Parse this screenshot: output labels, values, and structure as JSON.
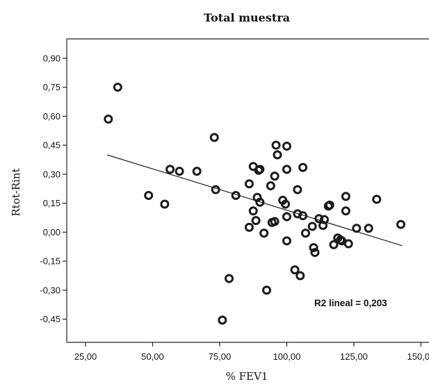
{
  "chart_data": {
    "type": "scatter",
    "title": "Total muestra",
    "xlabel": "% FEV1",
    "ylabel": "Rtot-Rint",
    "xlim": [
      18,
      153
    ],
    "ylim": [
      -0.57,
      1.0
    ],
    "xticks": [
      25,
      50,
      75,
      100,
      125,
      150
    ],
    "xtick_labels": [
      "25,00",
      "50,00",
      "75,00",
      "100,00",
      "125,00",
      "150,00"
    ],
    "yticks": [
      0.9,
      0.75,
      0.6,
      0.45,
      0.3,
      0.15,
      0.0,
      -0.15,
      -0.3,
      -0.45
    ],
    "ytick_labels": [
      "0,90",
      "0,75",
      "0,60",
      "0,45",
      "0,30",
      "0,15",
      "0,00",
      "-0,15",
      "-0,30",
      "-0,45"
    ],
    "grid": false,
    "annotation": "R2 lineal = 0,203",
    "fit_line": {
      "x": [
        33,
        143
      ],
      "y": [
        0.4,
        -0.07
      ]
    },
    "points": [
      {
        "x": 33.5,
        "y": 0.585
      },
      {
        "x": 37.0,
        "y": 0.75
      },
      {
        "x": 48.5,
        "y": 0.19
      },
      {
        "x": 54.5,
        "y": 0.145
      },
      {
        "x": 56.5,
        "y": 0.325
      },
      {
        "x": 60.0,
        "y": 0.315
      },
      {
        "x": 66.5,
        "y": 0.315
      },
      {
        "x": 73.0,
        "y": 0.49
      },
      {
        "x": 73.5,
        "y": 0.22
      },
      {
        "x": 76.0,
        "y": -0.455
      },
      {
        "x": 78.5,
        "y": -0.24
      },
      {
        "x": 81.0,
        "y": 0.19
      },
      {
        "x": 86.0,
        "y": 0.025
      },
      {
        "x": 86.0,
        "y": 0.25
      },
      {
        "x": 87.5,
        "y": 0.34
      },
      {
        "x": 87.5,
        "y": 0.11
      },
      {
        "x": 88.5,
        "y": 0.06
      },
      {
        "x": 89.0,
        "y": 0.18
      },
      {
        "x": 89.5,
        "y": 0.32
      },
      {
        "x": 90.0,
        "y": 0.325
      },
      {
        "x": 90.0,
        "y": 0.155
      },
      {
        "x": 91.5,
        "y": -0.005
      },
      {
        "x": 92.5,
        "y": -0.3
      },
      {
        "x": 94.0,
        "y": 0.24
      },
      {
        "x": 94.5,
        "y": 0.05
      },
      {
        "x": 95.5,
        "y": 0.055
      },
      {
        "x": 95.5,
        "y": 0.29
      },
      {
        "x": 96.0,
        "y": 0.45
      },
      {
        "x": 96.5,
        "y": 0.4
      },
      {
        "x": 98.5,
        "y": 0.165
      },
      {
        "x": 99.5,
        "y": 0.145
      },
      {
        "x": 100.0,
        "y": 0.445
      },
      {
        "x": 100.0,
        "y": 0.325
      },
      {
        "x": 100.0,
        "y": 0.08
      },
      {
        "x": 100.0,
        "y": -0.045
      },
      {
        "x": 103.0,
        "y": -0.195
      },
      {
        "x": 104.0,
        "y": 0.095
      },
      {
        "x": 104.0,
        "y": 0.22
      },
      {
        "x": 105.0,
        "y": -0.225
      },
      {
        "x": 106.0,
        "y": 0.335
      },
      {
        "x": 106.0,
        "y": 0.085
      },
      {
        "x": 107.0,
        "y": -0.005
      },
      {
        "x": 109.5,
        "y": 0.03
      },
      {
        "x": 110.0,
        "y": -0.08
      },
      {
        "x": 110.5,
        "y": -0.105
      },
      {
        "x": 112.0,
        "y": 0.07
      },
      {
        "x": 113.5,
        "y": 0.035
      },
      {
        "x": 114.0,
        "y": 0.065
      },
      {
        "x": 115.5,
        "y": 0.135
      },
      {
        "x": 116.0,
        "y": 0.14
      },
      {
        "x": 117.5,
        "y": -0.065
      },
      {
        "x": 119.0,
        "y": -0.03
      },
      {
        "x": 120.0,
        "y": -0.04
      },
      {
        "x": 120.5,
        "y": -0.045
      },
      {
        "x": 122.0,
        "y": 0.185
      },
      {
        "x": 122.0,
        "y": 0.11
      },
      {
        "x": 123.0,
        "y": -0.06
      },
      {
        "x": 126.0,
        "y": 0.02
      },
      {
        "x": 130.5,
        "y": 0.02
      },
      {
        "x": 133.5,
        "y": 0.17
      },
      {
        "x": 142.5,
        "y": 0.04
      }
    ]
  }
}
